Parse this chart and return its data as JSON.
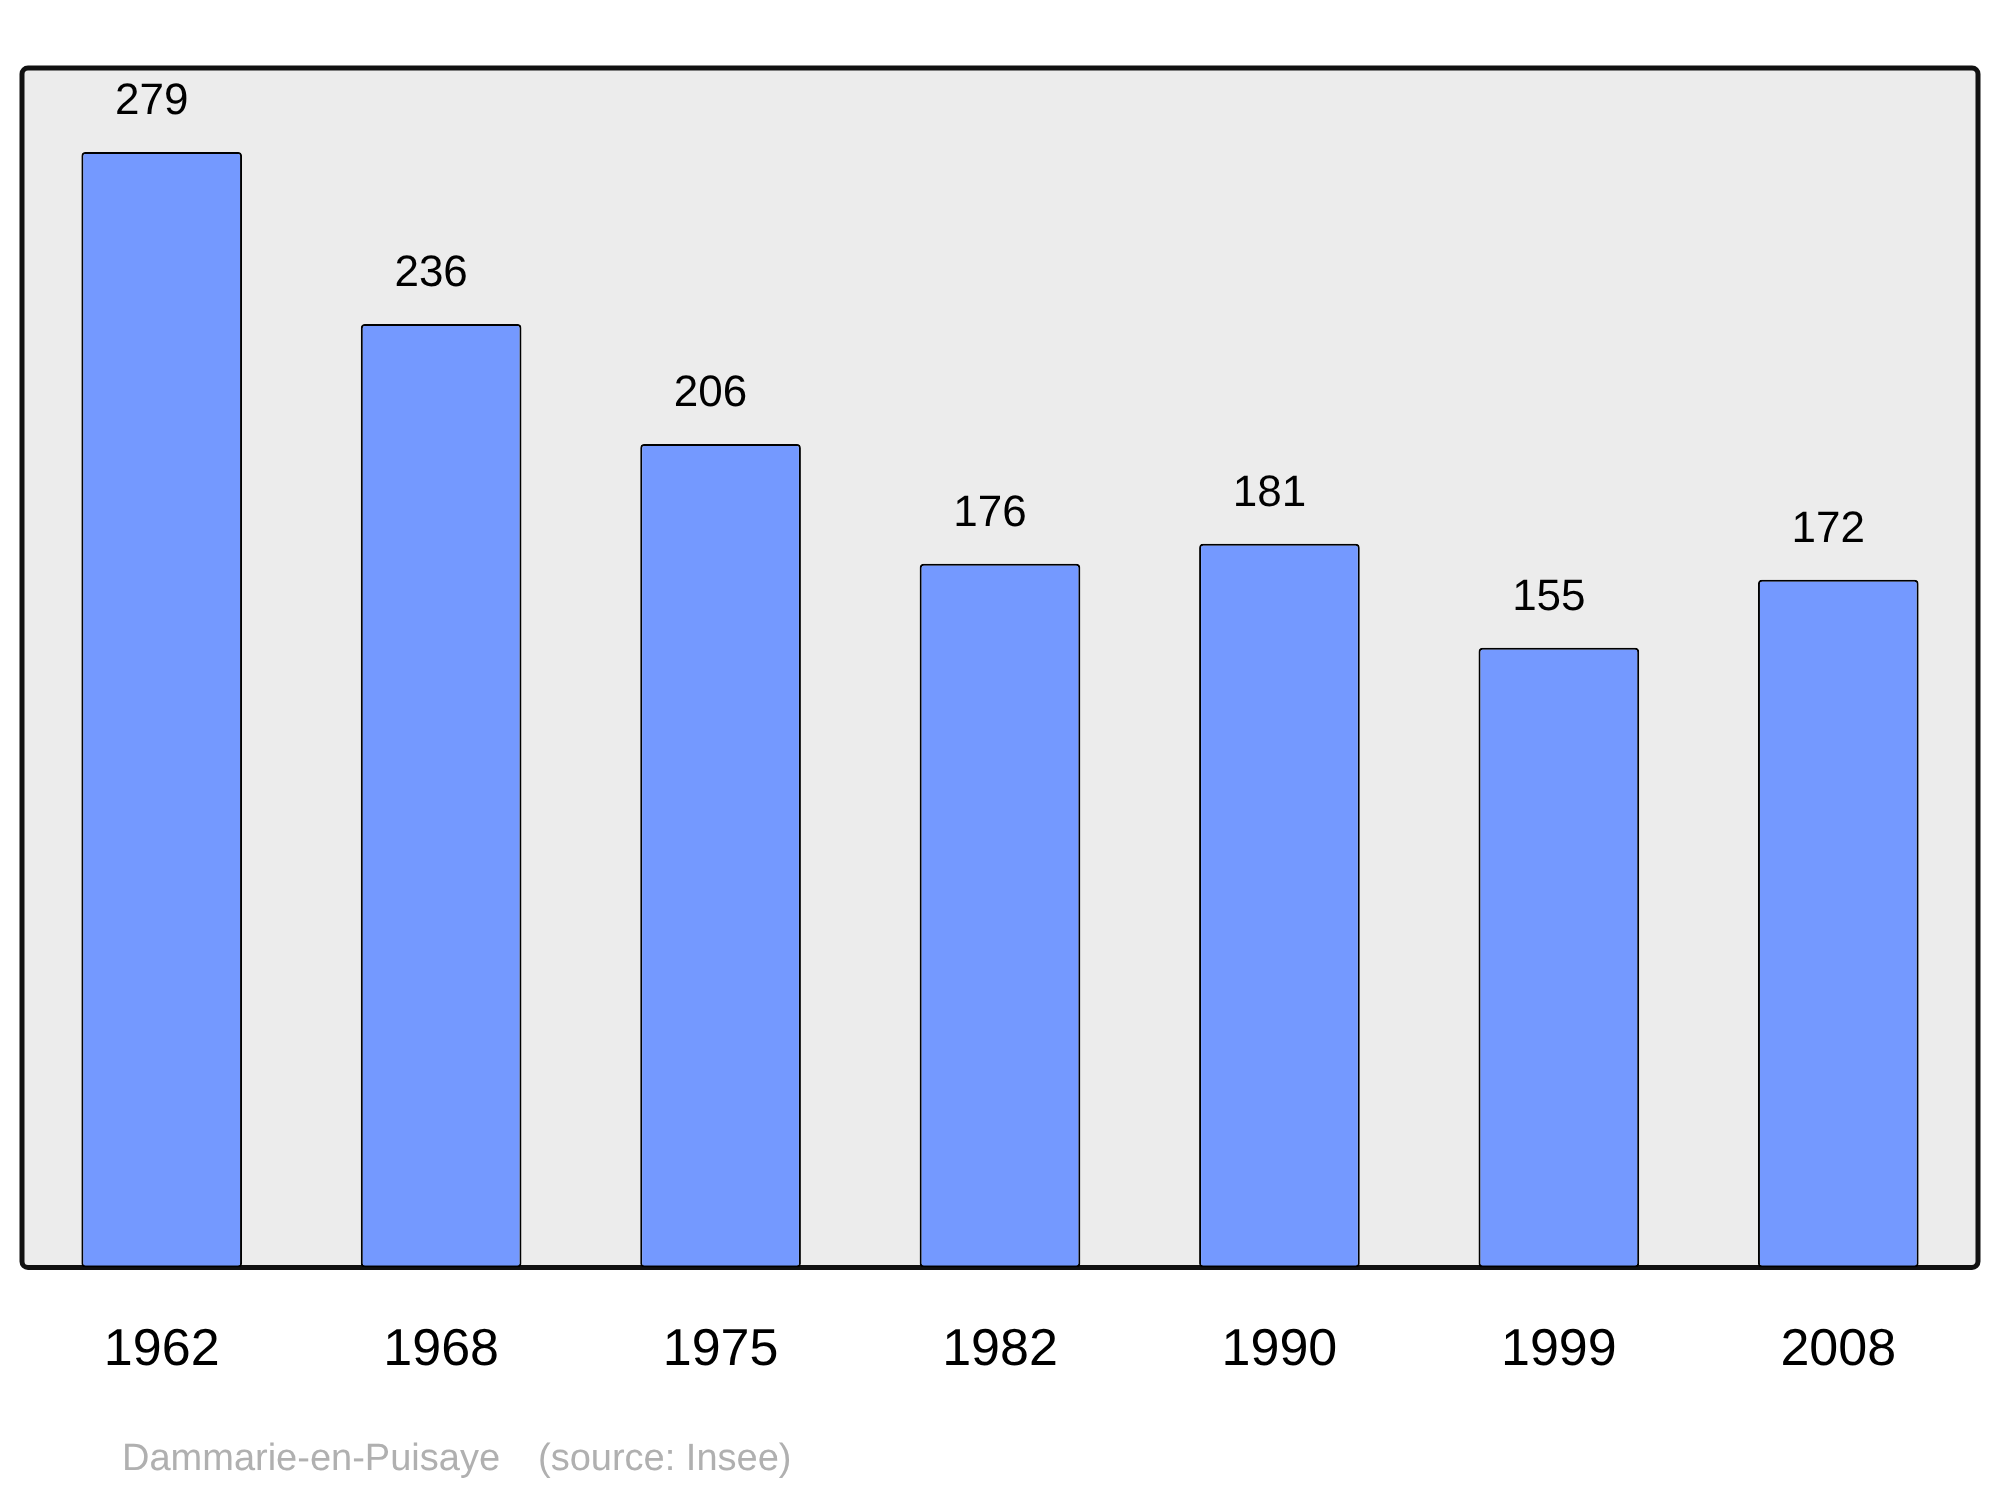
{
  "chart_data": {
    "type": "bar",
    "categories": [
      "1962",
      "1968",
      "1975",
      "1982",
      "1990",
      "1999",
      "2008"
    ],
    "values": [
      279,
      236,
      206,
      176,
      181,
      155,
      172
    ],
    "color": "#7499ff",
    "data_labels": true,
    "grid": false,
    "legend": false,
    "annotations": [
      "Dammarie-en-Puisaye    (source: Insee)"
    ]
  }
}
